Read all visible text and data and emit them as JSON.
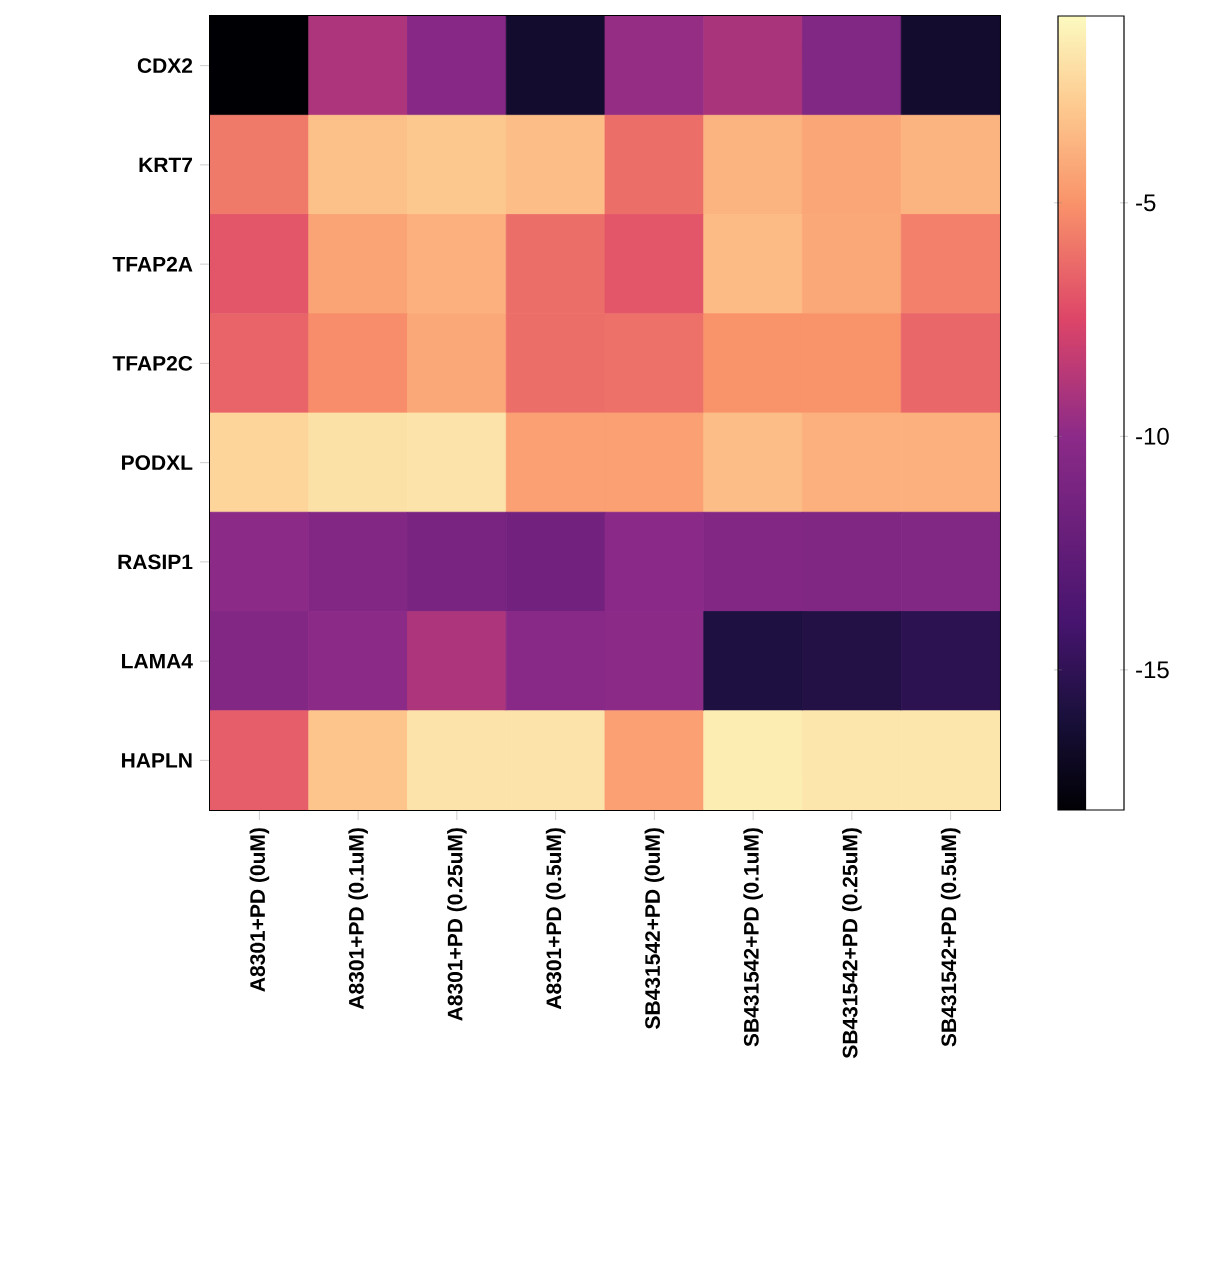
{
  "chart_data": {
    "type": "heatmap",
    "categories": [
      "A8301+PD (0uM)",
      "A8301+PD (0.1uM)",
      "A8301+PD (0.25uM)",
      "A8301+PD (0.5uM)",
      "SB431542+PD (0uM)",
      "SB431542+PD (0.1uM)",
      "SB431542+PD (0.25uM)",
      "SB431542+PD (0.5uM)"
    ],
    "y_categories": [
      "CDX2",
      "KRT7",
      "TFAP2A",
      "TFAP2C",
      "PODXL",
      "RASIP1",
      "LAMA4",
      "HAPLN"
    ],
    "cells": [
      [
        -18,
        -9.0,
        -10.3,
        -16.5,
        -9.7,
        -9.1,
        -10.6,
        -16.5
      ],
      [
        -5.8,
        -3.3,
        -3.0,
        -3.4,
        -6.2,
        -3.8,
        -4.3,
        -3.8
      ],
      [
        -7.0,
        -4.4,
        -3.9,
        -6.2,
        -7.0,
        -3.5,
        -4.2,
        -5.6
      ],
      [
        -6.5,
        -5.2,
        -4.2,
        -6.2,
        -6.1,
        -5.0,
        -5.0,
        -6.4
      ],
      [
        -2.5,
        -2.0,
        -1.9,
        -4.5,
        -4.5,
        -3.4,
        -3.9,
        -3.9
      ],
      [
        -10.0,
        -10.5,
        -11.0,
        -11.5,
        -10.1,
        -10.5,
        -10.7,
        -10.6
      ],
      [
        -10.5,
        -10.0,
        -9.0,
        -10.2,
        -10.0,
        -15.8,
        -15.6,
        -15.2
      ],
      [
        -6.7,
        -3.1,
        -1.9,
        -1.9,
        -4.5,
        -1.5,
        -1.8,
        -1.8
      ]
    ],
    "clim": [
      -18,
      -1
    ],
    "cticks": [
      -5,
      -10,
      -15
    ]
  }
}
